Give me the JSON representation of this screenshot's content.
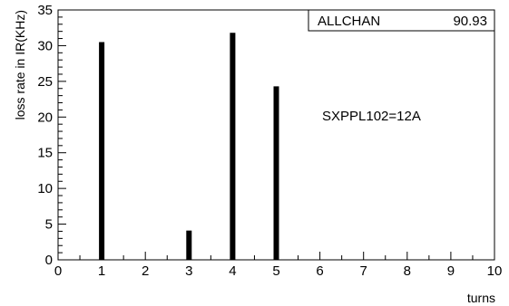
{
  "chart_data": {
    "type": "bar",
    "title": "",
    "xlabel": "turns",
    "ylabel": "loss rate in IR(KHz)",
    "xlim": [
      0,
      10
    ],
    "ylim": [
      0,
      35
    ],
    "x_ticks": [
      0,
      1,
      2,
      3,
      4,
      5,
      6,
      7,
      8,
      9,
      10
    ],
    "y_ticks": [
      0,
      5,
      10,
      15,
      20,
      25,
      30,
      35
    ],
    "x": [
      1,
      3,
      4,
      5
    ],
    "values": [
      30.5,
      4.1,
      31.8,
      24.3
    ],
    "stats_box": {
      "label": "ALLCHAN",
      "value": "90.93"
    },
    "annotation": "SXPPL102=12A",
    "grid": false,
    "bar_color": "#000000"
  }
}
